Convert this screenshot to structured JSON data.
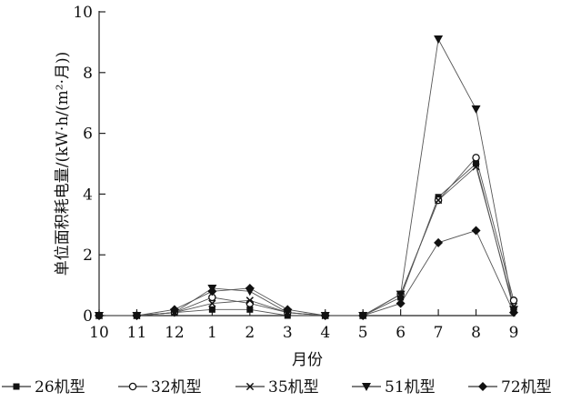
{
  "chart_data": {
    "type": "line",
    "title": "",
    "xlabel": "月份",
    "ylabel": "单位面积耗电量/(kW·h/(m²·月))",
    "categories": [
      "10",
      "11",
      "12",
      "1",
      "2",
      "3",
      "4",
      "5",
      "6",
      "7",
      "8",
      "9"
    ],
    "ylim": [
      0,
      10
    ],
    "yticks": [
      "0",
      "2",
      "4",
      "6",
      "8",
      "10"
    ],
    "grid": false,
    "legend_position": "bottom",
    "series": [
      {
        "name": "26机型",
        "marker": "filled-square",
        "values": [
          0,
          0,
          0.1,
          0.2,
          0.2,
          0,
          0,
          0,
          0.6,
          3.9,
          5.0,
          0.2
        ]
      },
      {
        "name": "32机型",
        "marker": "open-circle",
        "values": [
          0,
          0,
          0.1,
          0.6,
          0.4,
          0.1,
          0,
          0,
          0.7,
          3.8,
          5.2,
          0.5
        ]
      },
      {
        "name": "35机型",
        "marker": "cross",
        "values": [
          0,
          0,
          0.1,
          0.4,
          0.5,
          0.1,
          0,
          0,
          0.7,
          3.8,
          4.9,
          0.3
        ]
      },
      {
        "name": "51机型",
        "marker": "filled-down-triangle",
        "values": [
          0,
          0,
          0.1,
          0.9,
          0.8,
          0.1,
          0,
          0,
          0.7,
          9.1,
          6.8,
          0.2
        ]
      },
      {
        "name": "72机型",
        "marker": "filled-diamond",
        "values": [
          0,
          0,
          0.2,
          0.8,
          0.9,
          0.2,
          0,
          0,
          0.4,
          2.4,
          2.8,
          0.1
        ]
      }
    ]
  }
}
